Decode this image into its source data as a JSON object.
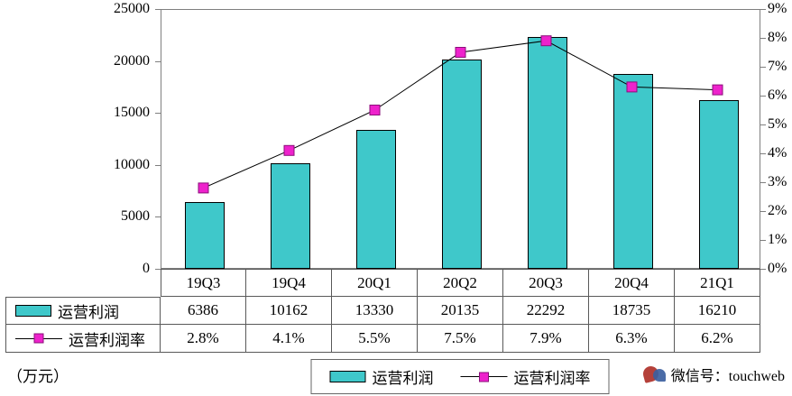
{
  "chart_data": {
    "type": "bar+line combo",
    "categories": [
      "19Q3",
      "19Q4",
      "20Q1",
      "20Q2",
      "20Q3",
      "20Q4",
      "21Q1"
    ],
    "series": [
      {
        "name": "运营利润",
        "type": "bar",
        "axis": "left",
        "values": [
          6386,
          10162,
          13330,
          20135,
          22292,
          18735,
          16210
        ]
      },
      {
        "name": "运营利润率",
        "type": "line",
        "axis": "right",
        "unit": "%",
        "values": [
          2.8,
          4.1,
          5.5,
          7.5,
          7.9,
          6.3,
          6.2
        ]
      }
    ],
    "left_axis": {
      "min": 0,
      "max": 25000,
      "step": 5000,
      "labels": [
        "0",
        "5000",
        "10000",
        "15000",
        "20000",
        "25000"
      ]
    },
    "right_axis": {
      "min": 0,
      "max": 9,
      "step": 1,
      "labels": [
        "0%",
        "1%",
        "2%",
        "3%",
        "4%",
        "5%",
        "6%",
        "7%",
        "8%",
        "9%"
      ]
    },
    "grid": false,
    "legend_position": "bottom"
  },
  "colors": {
    "bar_fill": "#3fc8ca",
    "bar_border": "#000000",
    "line": "#000000",
    "marker_fill": "#ee22cc",
    "marker_border": "#8b0f7a"
  },
  "table": {
    "header": [
      "19Q3",
      "19Q4",
      "20Q1",
      "20Q2",
      "20Q3",
      "20Q4",
      "21Q1"
    ],
    "rows": [
      {
        "label": "运营利润",
        "key": "bar",
        "values": [
          "6386",
          "10162",
          "13330",
          "20135",
          "22292",
          "18735",
          "16210"
        ]
      },
      {
        "label": "运营利润率",
        "key": "line",
        "values": [
          "2.8%",
          "4.1%",
          "5.5%",
          "7.5%",
          "7.9%",
          "6.3%",
          "6.2%"
        ]
      }
    ]
  },
  "legend": {
    "items": [
      {
        "label": "运营利润",
        "type": "bar"
      },
      {
        "label": "运营利润率",
        "type": "line"
      }
    ]
  },
  "footer": {
    "unit_label": "（万元）",
    "wechat_text": "微信号：touchweb"
  }
}
